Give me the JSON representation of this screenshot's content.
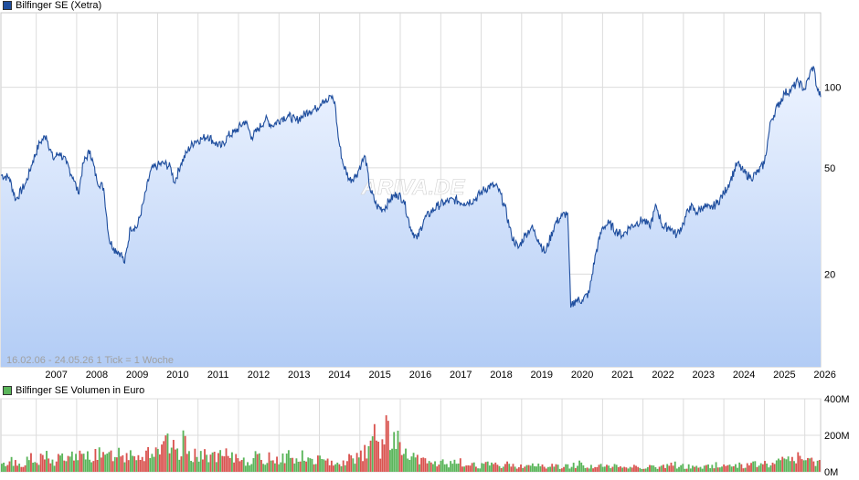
{
  "price_legend": {
    "label": "Bilfinger SE (Xetra)",
    "color": "#1f4e9e"
  },
  "volume_legend": {
    "label": "Bilfinger SE Volumen in Euro",
    "color": "#5ab55a"
  },
  "info_text": "16.02.06 - 24.05.26   1 Tick = 1 Woche",
  "watermark": "ARIVA.DE",
  "chart_data": [
    {
      "type": "line",
      "scale": "log",
      "title": "Bilfinger SE (Xetra)",
      "x_ticks": [
        "2007",
        "2008",
        "2009",
        "2010",
        "2011",
        "2012",
        "2013",
        "2014",
        "2015",
        "2016",
        "2017",
        "2018",
        "2019",
        "2020",
        "2021",
        "2022",
        "2023",
        "2024",
        "2025",
        "2026"
      ],
      "y_ticks": [
        20,
        50,
        100
      ],
      "ylim": [
        9,
        190
      ],
      "xlim": [
        "2006-02-16",
        "2026-05-24"
      ],
      "series": [
        {
          "name": "Bilfinger SE",
          "points": [
            [
              "2006-02-16",
              47
            ],
            [
              "2006-05-01",
              46
            ],
            [
              "2006-07-01",
              38
            ],
            [
              "2006-10-01",
              44
            ],
            [
              "2006-12-01",
              53
            ],
            [
              "2007-02-01",
              62
            ],
            [
              "2007-04-01",
              66
            ],
            [
              "2007-06-01",
              54
            ],
            [
              "2007-08-01",
              57
            ],
            [
              "2007-10-01",
              52
            ],
            [
              "2007-12-01",
              46
            ],
            [
              "2008-01-15",
              40
            ],
            [
              "2008-03-01",
              52
            ],
            [
              "2008-05-01",
              58
            ],
            [
              "2008-07-01",
              45
            ],
            [
              "2008-09-01",
              42
            ],
            [
              "2008-10-20",
              27
            ],
            [
              "2008-12-01",
              25
            ],
            [
              "2009-02-01",
              24
            ],
            [
              "2009-03-09",
              22
            ],
            [
              "2009-05-01",
              30
            ],
            [
              "2009-07-01",
              30
            ],
            [
              "2009-09-01",
              38
            ],
            [
              "2009-11-01",
              49
            ],
            [
              "2010-01-01",
              51
            ],
            [
              "2010-03-01",
              52
            ],
            [
              "2010-05-01",
              50
            ],
            [
              "2010-06-01",
              44
            ],
            [
              "2010-08-01",
              52
            ],
            [
              "2010-10-01",
              58
            ],
            [
              "2010-12-01",
              63
            ],
            [
              "2011-02-01",
              64
            ],
            [
              "2011-04-01",
              66
            ],
            [
              "2011-06-01",
              62
            ],
            [
              "2011-08-01",
              60
            ],
            [
              "2011-10-01",
              66
            ],
            [
              "2011-12-01",
              68
            ],
            [
              "2012-03-01",
              75
            ],
            [
              "2012-05-01",
              65
            ],
            [
              "2012-07-01",
              70
            ],
            [
              "2012-09-01",
              76
            ],
            [
              "2012-11-01",
              72
            ],
            [
              "2013-02-01",
              77
            ],
            [
              "2013-04-01",
              78
            ],
            [
              "2013-06-01",
              75
            ],
            [
              "2013-08-01",
              78
            ],
            [
              "2013-10-01",
              82
            ],
            [
              "2013-12-01",
              83
            ],
            [
              "2014-02-01",
              90
            ],
            [
              "2014-03-15",
              88
            ],
            [
              "2014-04-15",
              93
            ],
            [
              "2014-05-20",
              88
            ],
            [
              "2014-06-20",
              65
            ],
            [
              "2014-08-01",
              52
            ],
            [
              "2014-10-01",
              45
            ],
            [
              "2014-12-01",
              47
            ],
            [
              "2015-01-15",
              52
            ],
            [
              "2015-02-20",
              55
            ],
            [
              "2015-04-01",
              42
            ],
            [
              "2015-06-01",
              36
            ],
            [
              "2015-08-01",
              35
            ],
            [
              "2015-10-01",
              38
            ],
            [
              "2015-12-01",
              40
            ],
            [
              "2016-02-01",
              38
            ],
            [
              "2016-04-01",
              30
            ],
            [
              "2016-06-01",
              27
            ],
            [
              "2016-08-01",
              32
            ],
            [
              "2016-10-01",
              34
            ],
            [
              "2016-12-01",
              36
            ],
            [
              "2017-02-01",
              37
            ],
            [
              "2017-05-01",
              38
            ],
            [
              "2017-08-01",
              37
            ],
            [
              "2017-11-01",
              38
            ],
            [
              "2018-01-15",
              41
            ],
            [
              "2018-04-01",
              43
            ],
            [
              "2018-06-01",
              42
            ],
            [
              "2018-08-01",
              36
            ],
            [
              "2018-10-01",
              28
            ],
            [
              "2018-12-01",
              25
            ],
            [
              "2019-02-01",
              28
            ],
            [
              "2019-04-01",
              30
            ],
            [
              "2019-06-01",
              27
            ],
            [
              "2019-08-01",
              24
            ],
            [
              "2019-11-01",
              31
            ],
            [
              "2020-01-01",
              33
            ],
            [
              "2020-02-20",
              34
            ],
            [
              "2020-03-20",
              15
            ],
            [
              "2020-05-01",
              16
            ],
            [
              "2020-07-01",
              16
            ],
            [
              "2020-09-01",
              17
            ],
            [
              "2020-11-01",
              24
            ],
            [
              "2021-01-01",
              30
            ],
            [
              "2021-03-01",
              31
            ],
            [
              "2021-05-01",
              29
            ],
            [
              "2021-07-01",
              28
            ],
            [
              "2021-09-01",
              30
            ],
            [
              "2021-11-01",
              31
            ],
            [
              "2022-01-01",
              32
            ],
            [
              "2022-03-01",
              30
            ],
            [
              "2022-05-01",
              36
            ],
            [
              "2022-07-01",
              30
            ],
            [
              "2022-09-01",
              30
            ],
            [
              "2022-11-01",
              28
            ],
            [
              "2023-01-01",
              31
            ],
            [
              "2023-03-01",
              36
            ],
            [
              "2023-05-01",
              34
            ],
            [
              "2023-07-01",
              36
            ],
            [
              "2023-09-01",
              35
            ],
            [
              "2023-11-01",
              37
            ],
            [
              "2024-01-01",
              40
            ],
            [
              "2024-03-01",
              45
            ],
            [
              "2024-05-01",
              52
            ],
            [
              "2024-07-01",
              48
            ],
            [
              "2024-09-01",
              46
            ],
            [
              "2024-11-01",
              48
            ],
            [
              "2025-01-01",
              52
            ],
            [
              "2025-03-01",
              75
            ],
            [
              "2025-05-01",
              85
            ],
            [
              "2025-07-01",
              95
            ],
            [
              "2025-09-01",
              98
            ],
            [
              "2025-11-01",
              105
            ],
            [
              "2026-01-01",
              98
            ],
            [
              "2026-02-15",
              112
            ],
            [
              "2026-03-20",
              120
            ],
            [
              "2026-04-20",
              100
            ],
            [
              "2026-05-24",
              92
            ]
          ]
        }
      ]
    },
    {
      "type": "bar",
      "title": "Bilfinger SE Volumen in Euro",
      "y_ticks": [
        "0M",
        "200M",
        "400M"
      ],
      "ylim": [
        0,
        400
      ],
      "unit": "M EUR",
      "series": [
        {
          "name": "Volumen",
          "values": [
            40,
            55,
            70,
            60,
            45,
            50,
            65,
            80,
            55,
            60,
            75,
            90,
            70,
            60,
            85,
            95,
            80,
            70,
            100,
            110,
            90,
            80,
            95,
            105,
            120,
            100,
            85,
            90,
            110,
            130,
            115,
            95,
            110,
            140,
            120,
            90,
            100,
            125,
            135,
            110,
            95,
            140,
            160,
            150,
            130,
            115,
            170,
            180,
            120,
            110,
            90,
            85,
            100,
            110,
            95,
            80,
            90,
            100,
            75,
            80,
            85,
            95,
            70,
            65,
            80,
            90,
            75,
            70,
            85,
            95,
            80,
            75,
            90,
            100,
            85,
            70,
            80,
            90,
            75,
            65,
            70,
            80,
            60,
            55,
            65,
            75,
            60,
            55,
            70,
            80,
            90,
            100,
            110,
            140,
            170,
            200,
            180,
            150,
            230,
            250,
            210,
            180,
            130,
            110,
            90,
            80,
            75,
            60,
            70,
            60,
            55,
            50,
            60,
            55,
            50,
            45,
            50,
            55,
            45,
            40,
            45,
            50,
            40,
            38,
            42,
            46,
            38,
            35,
            40,
            45,
            40,
            36,
            38,
            42,
            36,
            33,
            36,
            40,
            35,
            32,
            35,
            38,
            34,
            30,
            32,
            36,
            40,
            45,
            50,
            40,
            35,
            32,
            30,
            34,
            38,
            32,
            30,
            33,
            36,
            30,
            28,
            30,
            34,
            30,
            28,
            32,
            35,
            30,
            28,
            30,
            33,
            40,
            45,
            38,
            34,
            30,
            32,
            35,
            30,
            28,
            30,
            33,
            38,
            42,
            40,
            36,
            34,
            38,
            42,
            45,
            40,
            38,
            42,
            46,
            52,
            48,
            44,
            48,
            52,
            58,
            70,
            90,
            80,
            75,
            85,
            70,
            60,
            65,
            70,
            75
          ]
        }
      ]
    }
  ]
}
